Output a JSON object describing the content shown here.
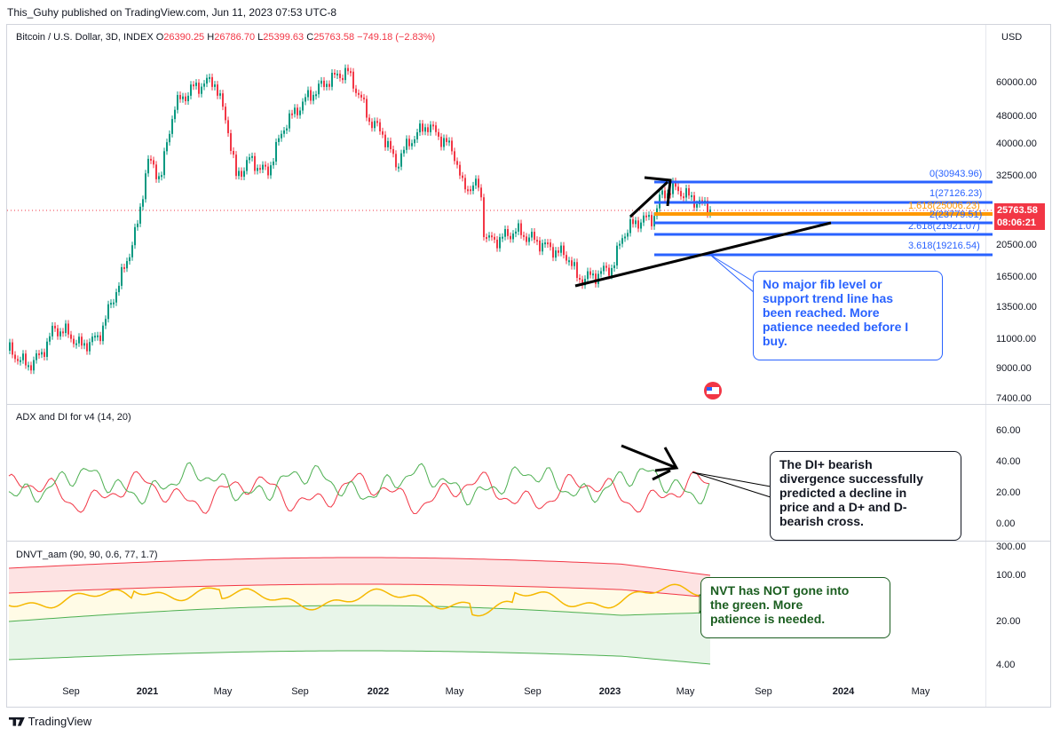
{
  "publisher_line": "This_Guhy published on TradingView.com, Jun 11, 2023 07:53 UTC-8",
  "main": {
    "symbol": "Bitcoin / U.S. Dollar, 3D, INDEX",
    "o_label": "O",
    "o_value": "26390.25",
    "h_label": "H",
    "h_value": "26786.70",
    "l_label": "L",
    "l_value": "25399.63",
    "c_label": "C",
    "c_value": "25763.58",
    "change": "−749.18 (−2.83%)",
    "currency": "USD",
    "y_ticks": [
      "60000.00",
      "48000.00",
      "40000.00",
      "32500.00",
      "25763.58",
      "20500.00",
      "16500.00",
      "13500.00",
      "11000.00",
      "9000.00",
      "7400.00"
    ],
    "last_price": "25763.58",
    "countdown": "08:06:21",
    "fib_levels": [
      {
        "label": "0(30943.96)"
      },
      {
        "label": "1(27126.23)"
      },
      {
        "label": "1.618(25006.23)"
      },
      {
        "label": "2(23779.51)"
      },
      {
        "label": "2.618(21921.07)"
      },
      {
        "label": "3.618(19216.54)"
      }
    ],
    "note": "No major fib level or\nsupport trend line has\nbeen reached.  More\npatience needed before I\nbuy."
  },
  "adx": {
    "title": "ADX and DI for v4 (14, 20)",
    "y_ticks": [
      "60.00",
      "40.00",
      "20.00",
      "0.00"
    ],
    "note": "The DI+  bearish\ndivergence successfully\npredicted a decline in\nprice and a D+ and D-\nbearish cross."
  },
  "dnvt": {
    "title": "DNVT_aam (90, 90, 0.6, 77, 1.7)",
    "y_ticks": [
      "300.00",
      "100.00",
      "20.00",
      "4.00"
    ],
    "note": "NVT has NOT gone into\nthe green.  More\npatience is needed."
  },
  "x_axis": [
    {
      "label": "Sep",
      "bold": false
    },
    {
      "label": "2021",
      "bold": true
    },
    {
      "label": "May",
      "bold": false
    },
    {
      "label": "Sep",
      "bold": false
    },
    {
      "label": "2022",
      "bold": true
    },
    {
      "label": "May",
      "bold": false
    },
    {
      "label": "Sep",
      "bold": false
    },
    {
      "label": "2023",
      "bold": true
    },
    {
      "label": "May",
      "bold": false
    },
    {
      "label": "Sep",
      "bold": false
    },
    {
      "label": "2024",
      "bold": true
    },
    {
      "label": "May",
      "bold": false
    }
  ],
  "footer": {
    "brand": "TradingView"
  },
  "colors": {
    "up": "#089981",
    "down": "#f23645",
    "fib": "#2962ff",
    "fib_highlight": "#ff9800",
    "di_plus": "#4caf50",
    "di_minus": "#f23645",
    "nvt": "#f5b800",
    "note_blue": "#2962ff",
    "note_green": "#1b5e20",
    "note_black": "#131722"
  }
}
